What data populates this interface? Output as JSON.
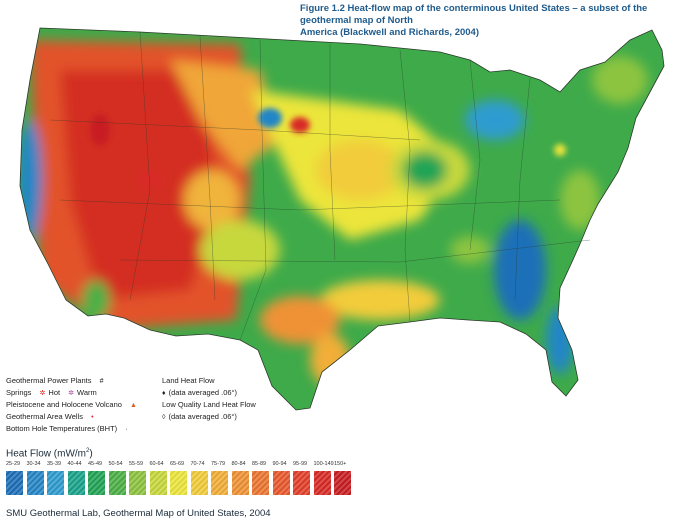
{
  "figure": {
    "title_line1": "Figure 1.2 Heat-flow map of the conterminous United States – a subset of the geothermal map of North",
    "title_line2": "America (Blackwell and Richards, 2004)"
  },
  "legend": {
    "geothermal_power_plants": "Geothermal Power Plants",
    "springs": "Springs",
    "hot": "Hot",
    "warm": "Warm",
    "volcano": "Pleistocene and Holocene Volcano",
    "wells": "Geothermal Area Wells",
    "bht": "Bottom Hole Temperatures (BHT)",
    "land_heat_flow": "Land Heat Flow",
    "land_avg": "(data averaged .06°)",
    "low_quality": "Low Quality Land Heat Flow",
    "low_avg": "(data averaged .06°)"
  },
  "heat_flow": {
    "title": "Heat Flow (mW/m",
    "superscript": "2",
    "title_close": ")",
    "classes": [
      {
        "label": "25-29",
        "color": "#1d6fb8"
      },
      {
        "label": "30-34",
        "color": "#2486c6"
      },
      {
        "label": "35-39",
        "color": "#2e9bd0"
      },
      {
        "label": "40-44",
        "color": "#1aa38a"
      },
      {
        "label": "45-49",
        "color": "#22a455"
      },
      {
        "label": "50-54",
        "color": "#4cb046"
      },
      {
        "label": "55-59",
        "color": "#8cc43f"
      },
      {
        "label": "60-64",
        "color": "#c7d83c"
      },
      {
        "label": "65-69",
        "color": "#ece53b"
      },
      {
        "label": "70-74",
        "color": "#f2cc3a"
      },
      {
        "label": "75-79",
        "color": "#f1ae37"
      },
      {
        "label": "80-84",
        "color": "#ef9234"
      },
      {
        "label": "85-89",
        "color": "#ec7530"
      },
      {
        "label": "90-94",
        "color": "#e8582c"
      },
      {
        "label": "95-99",
        "color": "#e23f28"
      },
      {
        "label": "100-149",
        "color": "#d82a25"
      },
      {
        "label": "150+",
        "color": "#c81d22"
      }
    ]
  },
  "credit": "SMU Geothermal Lab, Geothermal Map of United States, 2004"
}
